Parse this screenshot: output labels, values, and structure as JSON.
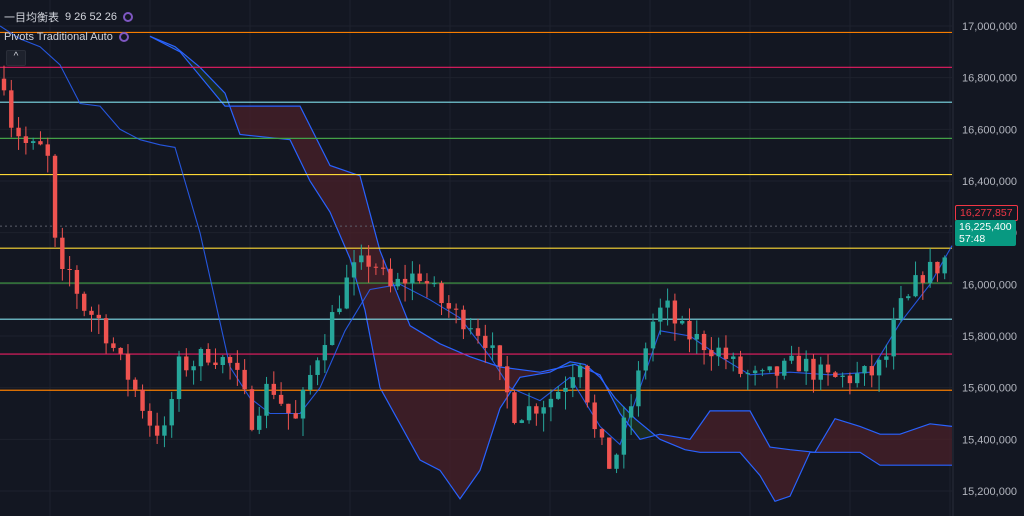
{
  "legend": {
    "ichimoku_name": "一目均衡表",
    "ichimoku_values": "9 26 52 26",
    "pivots_name": "Pivots Traditional Auto",
    "collapse_symbol": "^"
  },
  "tags": {
    "price_red": "16,277,857",
    "price_green": "16,225,400",
    "countdown": "57:48"
  },
  "chart_data": {
    "type": "candlestick",
    "y_axis": {
      "ticks": [
        17000000,
        16800000,
        16600000,
        16400000,
        16200000,
        16000000,
        15800000,
        15600000,
        15400000,
        15200000
      ],
      "tick_labels": [
        "17,000,000",
        "16,800,000",
        "16,600,000",
        "16,400,000",
        "16,200,000",
        "16,000,000",
        "15,800,000",
        "15,600,000",
        "15,400,000",
        "15,200,000"
      ],
      "range": [
        15150000,
        17050000
      ]
    },
    "grid": true,
    "pivot_levels": [
      {
        "value": 16975000,
        "color": "#f57c00"
      },
      {
        "value": 16840000,
        "color": "#e91e63"
      },
      {
        "value": 16705000,
        "color": "#80deea"
      },
      {
        "value": 16565000,
        "color": "#43a047"
      },
      {
        "value": 16425000,
        "color": "#fdd835"
      },
      {
        "value": 16140000,
        "color": "#fdd835"
      },
      {
        "value": 16005000,
        "color": "#43a047"
      },
      {
        "value": 15865000,
        "color": "#80deea"
      },
      {
        "value": 15730000,
        "color": "#e91e63"
      },
      {
        "value": 15590000,
        "color": "#f57c00"
      }
    ],
    "current_price": 16225400,
    "alt_price": 16277857,
    "candle_count": 130,
    "close_path": [
      [
        0,
        16900000
      ],
      [
        10,
        16640000
      ],
      [
        20,
        16580000
      ],
      [
        28,
        16530000
      ],
      [
        40,
        16520000
      ],
      [
        46,
        16560000
      ],
      [
        58,
        16020000
      ],
      [
        62,
        16020000
      ],
      [
        70,
        16050000
      ],
      [
        82,
        15920000
      ],
      [
        100,
        15860000
      ],
      [
        120,
        15700000
      ],
      [
        133,
        15610000
      ],
      [
        152,
        15450000
      ],
      [
        165,
        15420000
      ],
      [
        178,
        15680000
      ],
      [
        195,
        15700000
      ],
      [
        210,
        15740000
      ],
      [
        233,
        15680000
      ],
      [
        252,
        15480000
      ],
      [
        270,
        15620000
      ],
      [
        295,
        15460000
      ],
      [
        320,
        15760000
      ],
      [
        335,
        15900000
      ],
      [
        350,
        16040000
      ],
      [
        372,
        16100000
      ],
      [
        390,
        15980000
      ],
      [
        405,
        16020000
      ],
      [
        420,
        16040000
      ],
      [
        437,
        15950000
      ],
      [
        455,
        15880000
      ],
      [
        470,
        15860000
      ],
      [
        488,
        15780000
      ],
      [
        500,
        15640000
      ],
      [
        515,
        15500000
      ],
      [
        530,
        15520000
      ],
      [
        550,
        15560000
      ],
      [
        565,
        15620000
      ],
      [
        580,
        15720000
      ],
      [
        595,
        15420000
      ],
      [
        612,
        15280000
      ],
      [
        620,
        15400000
      ],
      [
        635,
        15580000
      ],
      [
        650,
        15840000
      ],
      [
        665,
        15920000
      ],
      [
        680,
        15820000
      ],
      [
        700,
        15780000
      ],
      [
        720,
        15740000
      ],
      [
        740,
        15660000
      ],
      [
        760,
        15630000
      ],
      [
        780,
        15660000
      ],
      [
        800,
        15700000
      ],
      [
        815,
        15660000
      ],
      [
        830,
        15630000
      ],
      [
        850,
        15640000
      ],
      [
        870,
        15650000
      ],
      [
        885,
        15700000
      ],
      [
        898,
        15900000
      ],
      [
        910,
        15940000
      ],
      [
        920,
        16040000
      ],
      [
        935,
        16060000
      ],
      [
        945,
        16100000
      ],
      [
        950,
        16280000
      ]
    ],
    "cloud": {
      "span_a": [
        [
          150,
          16960000
        ],
        [
          180,
          16900000
        ],
        [
          225,
          16690000
        ],
        [
          300,
          16690000
        ],
        [
          330,
          16460000
        ],
        [
          360,
          16420000
        ],
        [
          380,
          16130000
        ],
        [
          410,
          15840000
        ],
        [
          440,
          15770000
        ],
        [
          470,
          15720000
        ],
        [
          500,
          15680000
        ],
        [
          540,
          15660000
        ],
        [
          575,
          15690000
        ],
        [
          600,
          15650000
        ],
        [
          620,
          15500000
        ],
        [
          640,
          15400000
        ],
        [
          660,
          15420000
        ],
        [
          690,
          15400000
        ],
        [
          710,
          15510000
        ],
        [
          750,
          15510000
        ],
        [
          770,
          15370000
        ],
        [
          790,
          15360000
        ],
        [
          815,
          15350000
        ],
        [
          835,
          15480000
        ],
        [
          860,
          15450000
        ],
        [
          880,
          15420000
        ],
        [
          900,
          15420000
        ],
        [
          930,
          15460000
        ],
        [
          952,
          15450000
        ]
      ],
      "span_b": [
        [
          150,
          16960000
        ],
        [
          175,
          16920000
        ],
        [
          200,
          16840000
        ],
        [
          225,
          16740000
        ],
        [
          240,
          16580000
        ],
        [
          290,
          16560000
        ],
        [
          310,
          16400000
        ],
        [
          330,
          16280000
        ],
        [
          350,
          16100000
        ],
        [
          365,
          15900000
        ],
        [
          380,
          15600000
        ],
        [
          400,
          15460000
        ],
        [
          420,
          15320000
        ],
        [
          440,
          15280000
        ],
        [
          460,
          15170000
        ],
        [
          480,
          15280000
        ],
        [
          500,
          15520000
        ],
        [
          520,
          15640000
        ],
        [
          550,
          15660000
        ],
        [
          570,
          15700000
        ],
        [
          585,
          15690000
        ],
        [
          600,
          15640000
        ],
        [
          615,
          15560000
        ],
        [
          635,
          15480000
        ],
        [
          660,
          15400000
        ],
        [
          685,
          15360000
        ],
        [
          700,
          15350000
        ],
        [
          740,
          15350000
        ],
        [
          760,
          15260000
        ],
        [
          775,
          15160000
        ],
        [
          790,
          15180000
        ],
        [
          810,
          15350000
        ],
        [
          860,
          15350000
        ],
        [
          880,
          15300000
        ],
        [
          952,
          15300000
        ]
      ]
    },
    "conversion_line": [
      [
        0,
        17000000
      ],
      [
        20,
        16950000
      ],
      [
        40,
        16920000
      ],
      [
        60,
        16850000
      ],
      [
        80,
        16700000
      ],
      [
        100,
        16690000
      ],
      [
        120,
        16600000
      ],
      [
        140,
        16560000
      ],
      [
        160,
        16540000
      ],
      [
        175,
        16530000
      ],
      [
        200,
        16200000
      ],
      [
        230,
        15680000
      ],
      [
        250,
        15560000
      ],
      [
        270,
        15500000
      ],
      [
        300,
        15500000
      ],
      [
        320,
        15600000
      ],
      [
        345,
        15820000
      ],
      [
        370,
        15980000
      ],
      [
        400,
        16000000
      ],
      [
        430,
        15940000
      ],
      [
        460,
        15870000
      ],
      [
        490,
        15720000
      ],
      [
        510,
        15600000
      ],
      [
        540,
        15550000
      ],
      [
        570,
        15640000
      ],
      [
        600,
        15450000
      ],
      [
        620,
        15380000
      ],
      [
        640,
        15600000
      ],
      [
        660,
        15820000
      ],
      [
        690,
        15800000
      ],
      [
        720,
        15720000
      ],
      [
        750,
        15650000
      ],
      [
        790,
        15660000
      ],
      [
        830,
        15650000
      ],
      [
        870,
        15660000
      ],
      [
        900,
        15850000
      ],
      [
        930,
        16000000
      ],
      [
        952,
        16150000
      ]
    ],
    "colors": {
      "up": "#26a69a",
      "down": "#ef5350",
      "cloud_bear": "#4a2028",
      "cloud_bull": "#1e3325",
      "span_line": "#2962ff",
      "background": "#131722",
      "grid": "#1e222d",
      "axis_text": "#b2b5be",
      "tag_red": "#f23645",
      "tag_green": "#089981"
    }
  }
}
